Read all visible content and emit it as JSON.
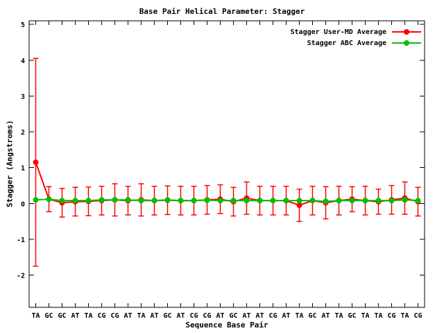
{
  "chart_data": {
    "type": "line",
    "title": "Base Pair Helical Parameter: Stagger",
    "xlabel": "Sequence Base Pair",
    "ylabel": "Stagger (Angstroms)",
    "categories": [
      "TA",
      "GC",
      "GC",
      "AT",
      "TA",
      "CG",
      "CG",
      "AT",
      "TA",
      "AT",
      "GC",
      "AT",
      "CG",
      "CG",
      "AT",
      "GC",
      "AT",
      "AT",
      "CG",
      "AT",
      "TA",
      "GC",
      "AT",
      "TA",
      "GC",
      "TA",
      "TA",
      "CG",
      "TA",
      "CG"
    ],
    "ylim": [
      -2.9,
      5.1
    ],
    "yticks": [
      -2,
      -1,
      0,
      1,
      2,
      3,
      4,
      5
    ],
    "grid": false,
    "legend_position": "top-right-inside",
    "series": [
      {
        "name": "Stagger User-MD Average",
        "color": "#ff0000",
        "marker": "filled-circle",
        "values": [
          1.15,
          0.12,
          0.02,
          0.05,
          0.06,
          0.08,
          0.1,
          0.08,
          0.1,
          0.08,
          0.09,
          0.08,
          0.08,
          0.1,
          0.12,
          0.05,
          0.15,
          0.08,
          0.08,
          0.08,
          -0.05,
          0.08,
          0.02,
          0.08,
          0.12,
          0.08,
          0.05,
          0.1,
          0.15,
          0.05
        ],
        "errors": [
          2.9,
          0.35,
          0.4,
          0.4,
          0.4,
          0.4,
          0.45,
          0.4,
          0.45,
          0.4,
          0.4,
          0.4,
          0.4,
          0.4,
          0.4,
          0.4,
          0.45,
          0.4,
          0.4,
          0.4,
          0.45,
          0.4,
          0.45,
          0.4,
          0.35,
          0.4,
          0.35,
          0.4,
          0.45,
          0.4
        ]
      },
      {
        "name": "Stagger ABC Average",
        "color": "#00c000",
        "marker": "filled-circle",
        "values": [
          0.1,
          0.12,
          0.08,
          0.08,
          0.08,
          0.1,
          0.1,
          0.1,
          0.08,
          0.08,
          0.1,
          0.08,
          0.08,
          0.09,
          0.08,
          0.08,
          0.08,
          0.08,
          0.08,
          0.08,
          0.08,
          0.08,
          0.06,
          0.08,
          0.08,
          0.08,
          0.08,
          0.08,
          0.1,
          0.08
        ],
        "errors": null
      }
    ]
  }
}
